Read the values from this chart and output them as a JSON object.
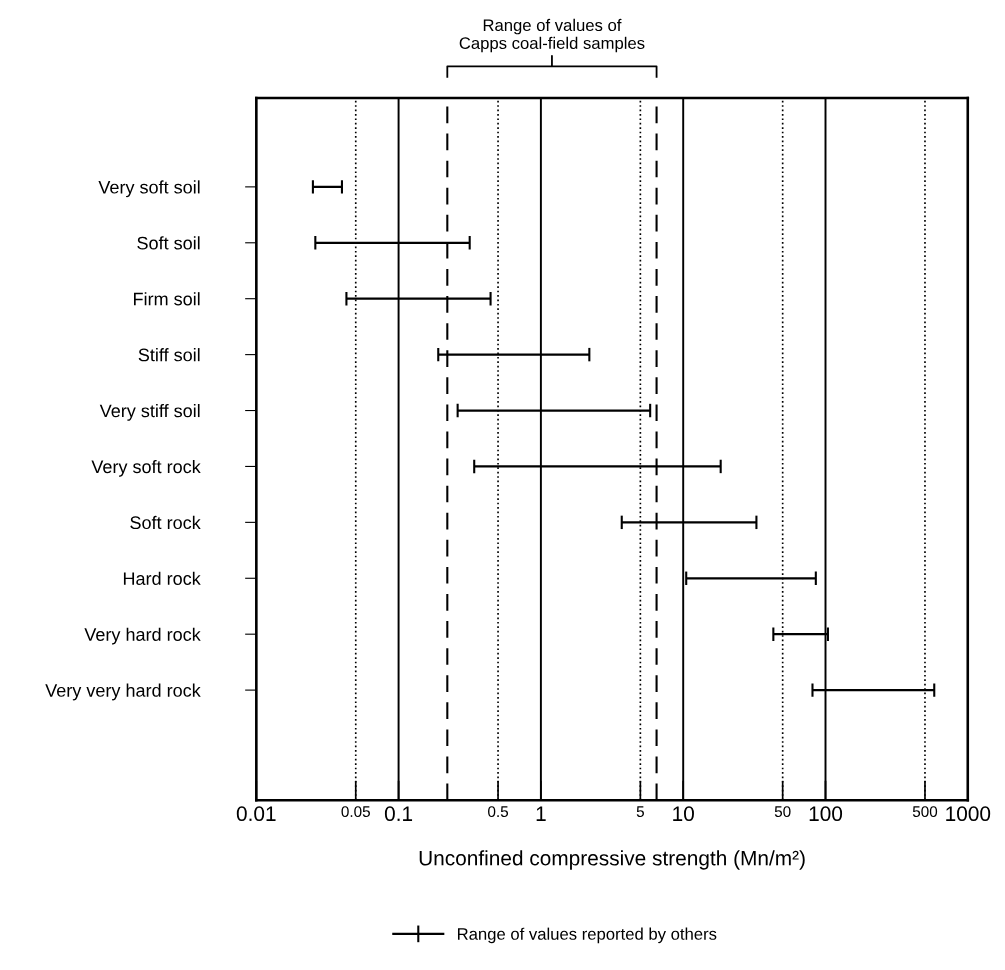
{
  "chart_data": {
    "type": "bar",
    "orientation": "horizontal",
    "categories": [
      "Very soft soil",
      "Soft soil",
      "Firm soil",
      "Stiff soil",
      "Very stiff soil",
      "Very soft rock",
      "Soft rock",
      "Hard rock",
      "Very hard rock",
      "Very very hard rock"
    ],
    "series": [
      {
        "name": "Range of values reported by others",
        "color": "#000000",
        "base": [
          0.025,
          0.026,
          0.043,
          0.19,
          0.26,
          0.34,
          3.7,
          10.5,
          43,
          81
        ],
        "values": [
          0.015,
          0.29,
          0.4,
          2.0,
          5.6,
          18,
          29,
          75,
          61,
          500
        ]
      }
    ],
    "log": "x",
    "xlim": [
      0.01,
      1000
    ],
    "xticks": [
      0.01,
      0.05,
      0.1,
      0.5,
      1,
      5,
      10,
      50,
      100,
      500,
      1000
    ],
    "xlabel": "Unconfined compressive strength (Mn/m²)",
    "grid": "x",
    "ref_lines": [
      {
        "axis": "x",
        "value": 0.22,
        "label": null,
        "line_style": "dashed"
      },
      {
        "axis": "x",
        "value": 6.5,
        "label": null,
        "line_style": "dashed"
      }
    ],
    "annotations": [
      "Range of values of\nCapps coal-field samples"
    ],
    "legend": "bottom"
  }
}
